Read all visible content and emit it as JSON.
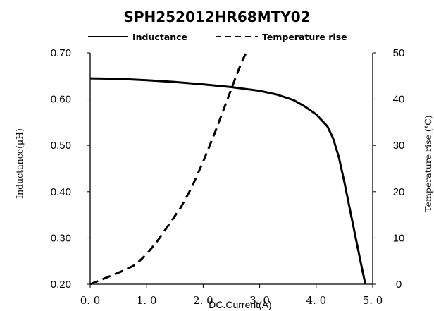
{
  "chart_data": {
    "type": "line",
    "title": "SPH252012HR68MTY02",
    "xlabel": "DC.Current(A)",
    "ylabel_left": "Inductance(μH)",
    "ylabel_right": "Temperature rise (℃)",
    "xlim": [
      0,
      5
    ],
    "ylim_left": [
      0.2,
      0.7
    ],
    "ylim_right": [
      0,
      50
    ],
    "x_tick_labels": [
      "0. 0",
      "1. 0",
      "2. 0",
      "3. 0",
      "4. 0",
      "5. 0"
    ],
    "y_left_tick_labels": [
      "0.70",
      "0.60",
      "0.50",
      "0.40",
      "0.30",
      "0.20"
    ],
    "y_right_tick_labels": [
      "50",
      "40",
      "30",
      "20",
      "10",
      "0"
    ],
    "grid": false,
    "legend_position": "top",
    "series": [
      {
        "name": "Inductance",
        "axis": "left",
        "style": "solid",
        "color": "#000000",
        "x": [
          0.0,
          0.5,
          1.0,
          1.5,
          2.0,
          2.5,
          3.0,
          3.3,
          3.6,
          3.8,
          4.0,
          4.2,
          4.3,
          4.4,
          4.5,
          4.6,
          4.7,
          4.8,
          4.87
        ],
        "y": [
          0.645,
          0.644,
          0.641,
          0.637,
          0.632,
          0.626,
          0.618,
          0.61,
          0.598,
          0.584,
          0.567,
          0.541,
          0.515,
          0.475,
          0.42,
          0.36,
          0.3,
          0.24,
          0.2
        ]
      },
      {
        "name": "Temperature rise",
        "axis": "right",
        "style": "dashed",
        "color": "#000000",
        "x": [
          0.0,
          0.3,
          0.6,
          0.8,
          1.0,
          1.2,
          1.4,
          1.6,
          1.8,
          2.0,
          2.2,
          2.4,
          2.6,
          2.7,
          2.76
        ],
        "y": [
          0.0,
          1.5,
          3.0,
          4.2,
          6.5,
          9.5,
          13.0,
          16.5,
          21.0,
          26.5,
          32.5,
          39.0,
          45.5,
          48.5,
          50.0
        ]
      }
    ]
  }
}
